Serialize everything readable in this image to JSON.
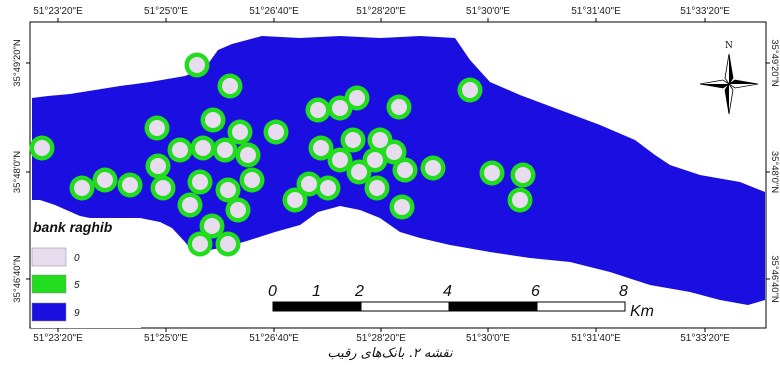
{
  "map": {
    "top_ticks": [
      "51°23'20\"E",
      "51°25'0\"E",
      "51°26'40\"E",
      "51°28'20\"E",
      "51°30'0\"E",
      "51°31'40\"E",
      "51°33'20\"E"
    ],
    "bottom_ticks": [
      "51°23'20\"E",
      "51°25'0\"E",
      "51°26'40\"E",
      "51°28'20\"E",
      "51°30'0\"E",
      "51°31'40\"E",
      "51°33'20\"E"
    ],
    "left_ticks": [
      "35°49'20\"N",
      "35°48'0\"N",
      "35°46'40\"N"
    ],
    "right_ticks": [
      "35°49'20\"N",
      "35°48'0\"N",
      "35°46'40\"N"
    ],
    "north_label": "N",
    "colors": {
      "zone_9": "#1a0fe0",
      "zone_5": "#22dd1e",
      "zone_0": "#e8dcef",
      "frame": "#000000"
    }
  },
  "legend": {
    "title": "bank raghib",
    "items": [
      {
        "label": "0",
        "color": "#e8dcef"
      },
      {
        "label": "5",
        "color": "#22dd1e"
      },
      {
        "label": "9",
        "color": "#1a0fe0"
      }
    ]
  },
  "scale_bar": {
    "labels": [
      "0",
      "1",
      "2",
      "4",
      "6",
      "8"
    ],
    "unit": "Km"
  },
  "caption": "نقشه ۲. بانک‌های رقیب"
}
